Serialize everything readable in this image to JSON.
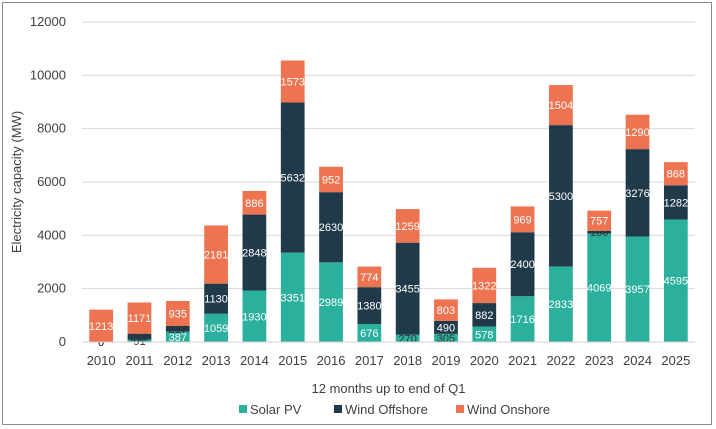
{
  "chart_data": {
    "type": "bar",
    "stacked": true,
    "xlabel": "12 months up to end of Q1",
    "ylabel": "Electricity capacity (MW)",
    "ylim": [
      0,
      12000
    ],
    "yticks": [
      0,
      2000,
      4000,
      6000,
      8000,
      10000,
      12000
    ],
    "grid": true,
    "legend_position": "bottom",
    "categories": [
      "2010",
      "2011",
      "2012",
      "2013",
      "2014",
      "2015",
      "2016",
      "2017",
      "2018",
      "2019",
      "2020",
      "2021",
      "2022",
      "2023",
      "2024",
      "2025"
    ],
    "series": [
      {
        "name": "Solar PV",
        "color": "#2ab09c",
        "values": [
          0,
          91,
          387,
          1059,
          1930,
          3351,
          2989,
          676,
          270,
          305,
          578,
          1716,
          2833,
          4069,
          3957,
          4595
        ]
      },
      {
        "name": "Wind Offshore",
        "color": "#203a4a",
        "values": [
          0,
          219,
          217,
          1130,
          2848,
          5632,
          2630,
          1380,
          3455,
          490,
          882,
          2400,
          5300,
          100,
          3276,
          1282
        ]
      },
      {
        "name": "Wind Onshore",
        "color": "#ee7451",
        "values": [
          1213,
          1171,
          935,
          2181,
          886,
          1573,
          952,
          774,
          1259,
          803,
          1322,
          969,
          1504,
          757,
          1290,
          868
        ]
      }
    ]
  }
}
